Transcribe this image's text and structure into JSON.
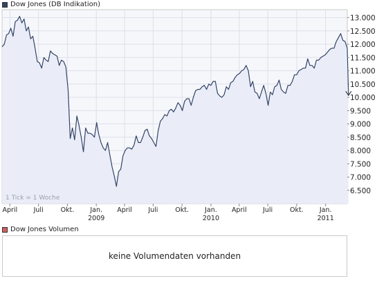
{
  "legend": {
    "title": "Dow Jones (DB Indikation)",
    "swatch_color": "#334466"
  },
  "volume": {
    "title": "Dow Jones Volumen",
    "swatch_color": "#d06060",
    "message": "keine Volumendaten vorhanden"
  },
  "annotation": "1 Tick = 1 Woche",
  "colors": {
    "line": "#334466",
    "fill": "#eaedf8",
    "grid": "#dde0ea",
    "last_marker": "#222222"
  },
  "chart_data": {
    "type": "area",
    "title": "Dow Jones (DB Indikation)",
    "xlabel": "",
    "ylabel": "",
    "x_range": [
      "2008-03-07",
      "2011-03-11"
    ],
    "ylim": [
      6000,
      13300
    ],
    "grid": true,
    "y_ticks": [
      {
        "value": 6500,
        "label": "6.500"
      },
      {
        "value": 7000,
        "label": "7.000"
      },
      {
        "value": 7500,
        "label": "7.500"
      },
      {
        "value": 8000,
        "label": "8.000"
      },
      {
        "value": 8500,
        "label": "8.500"
      },
      {
        "value": 9000,
        "label": "9.000"
      },
      {
        "value": 9500,
        "label": "9.500"
      },
      {
        "value": 10000,
        "label": "10.000"
      },
      {
        "value": 10500,
        "label": "10.500"
      },
      {
        "value": 11000,
        "label": "11.000"
      },
      {
        "value": 11500,
        "label": "11.500"
      },
      {
        "value": 12000,
        "label": "12.000"
      },
      {
        "value": 12500,
        "label": "12.500"
      },
      {
        "value": 13000,
        "label": "13.000"
      }
    ],
    "x_ticks": [
      {
        "date": "2008-04-01",
        "label": "April"
      },
      {
        "date": "2008-07-01",
        "label": "Juli"
      },
      {
        "date": "2008-10-01",
        "label": "Okt."
      },
      {
        "date": "2009-01-01",
        "label": "Jan.",
        "year": "2009"
      },
      {
        "date": "2009-04-01",
        "label": "April"
      },
      {
        "date": "2009-07-01",
        "label": "Juli"
      },
      {
        "date": "2009-10-01",
        "label": "Okt."
      },
      {
        "date": "2010-01-01",
        "label": "Jan.",
        "year": "2010"
      },
      {
        "date": "2010-04-01",
        "label": "April"
      },
      {
        "date": "2010-07-01",
        "label": "Juli"
      },
      {
        "date": "2010-10-01",
        "label": "Okt."
      },
      {
        "date": "2011-01-01",
        "label": "Jan.",
        "year": "2011"
      }
    ],
    "series": [
      {
        "points": [
          [
            "2008-03-07",
            11900
          ],
          [
            "2008-03-14",
            12000
          ],
          [
            "2008-03-21",
            12350
          ],
          [
            "2008-03-28",
            12400
          ],
          [
            "2008-04-04",
            12600
          ],
          [
            "2008-04-11",
            12300
          ],
          [
            "2008-04-18",
            12850
          ],
          [
            "2008-04-25",
            12900
          ],
          [
            "2008-05-02",
            13050
          ],
          [
            "2008-05-09",
            12800
          ],
          [
            "2008-05-16",
            12950
          ],
          [
            "2008-05-23",
            12500
          ],
          [
            "2008-05-30",
            12650
          ],
          [
            "2008-06-06",
            12200
          ],
          [
            "2008-06-13",
            12300
          ],
          [
            "2008-06-20",
            11850
          ],
          [
            "2008-06-27",
            11350
          ],
          [
            "2008-07-04",
            11300
          ],
          [
            "2008-07-11",
            11100
          ],
          [
            "2008-07-18",
            11500
          ],
          [
            "2008-07-25",
            11400
          ],
          [
            "2008-08-01",
            11350
          ],
          [
            "2008-08-08",
            11750
          ],
          [
            "2008-08-15",
            11650
          ],
          [
            "2008-08-22",
            11600
          ],
          [
            "2008-08-29",
            11550
          ],
          [
            "2008-09-05",
            11200
          ],
          [
            "2008-09-12",
            11400
          ],
          [
            "2008-09-19",
            11350
          ],
          [
            "2008-09-26",
            11150
          ],
          [
            "2008-10-03",
            10300
          ],
          [
            "2008-10-10",
            8450
          ],
          [
            "2008-10-17",
            8850
          ],
          [
            "2008-10-24",
            8400
          ],
          [
            "2008-10-31",
            9300
          ],
          [
            "2008-11-07",
            8950
          ],
          [
            "2008-11-14",
            8500
          ],
          [
            "2008-11-21",
            7950
          ],
          [
            "2008-11-28",
            8850
          ],
          [
            "2008-12-05",
            8650
          ],
          [
            "2008-12-12",
            8650
          ],
          [
            "2008-12-19",
            8600
          ],
          [
            "2008-12-26",
            8500
          ],
          [
            "2009-01-02",
            9050
          ],
          [
            "2009-01-09",
            8600
          ],
          [
            "2009-01-16",
            8300
          ],
          [
            "2009-01-23",
            8100
          ],
          [
            "2009-01-30",
            8000
          ],
          [
            "2009-02-06",
            8300
          ],
          [
            "2009-02-13",
            7850
          ],
          [
            "2009-02-20",
            7400
          ],
          [
            "2009-02-27",
            7050
          ],
          [
            "2009-03-06",
            6650
          ],
          [
            "2009-03-13",
            7200
          ],
          [
            "2009-03-20",
            7300
          ],
          [
            "2009-03-27",
            7800
          ],
          [
            "2009-04-03",
            8000
          ],
          [
            "2009-04-10",
            8100
          ],
          [
            "2009-04-17",
            8100
          ],
          [
            "2009-04-24",
            8050
          ],
          [
            "2009-05-01",
            8200
          ],
          [
            "2009-05-08",
            8550
          ],
          [
            "2009-05-15",
            8300
          ],
          [
            "2009-05-22",
            8300
          ],
          [
            "2009-05-29",
            8500
          ],
          [
            "2009-06-05",
            8750
          ],
          [
            "2009-06-12",
            8800
          ],
          [
            "2009-06-19",
            8550
          ],
          [
            "2009-06-26",
            8450
          ],
          [
            "2009-07-03",
            8300
          ],
          [
            "2009-07-10",
            8150
          ],
          [
            "2009-07-17",
            8750
          ],
          [
            "2009-07-24",
            9100
          ],
          [
            "2009-07-31",
            9200
          ],
          [
            "2009-08-07",
            9350
          ],
          [
            "2009-08-14",
            9300
          ],
          [
            "2009-08-21",
            9500
          ],
          [
            "2009-08-28",
            9550
          ],
          [
            "2009-09-04",
            9450
          ],
          [
            "2009-09-11",
            9600
          ],
          [
            "2009-09-18",
            9800
          ],
          [
            "2009-09-25",
            9700
          ],
          [
            "2009-10-02",
            9500
          ],
          [
            "2009-10-09",
            9850
          ],
          [
            "2009-10-16",
            9950
          ],
          [
            "2009-10-23",
            9950
          ],
          [
            "2009-10-30",
            9700
          ],
          [
            "2009-11-06",
            10000
          ],
          [
            "2009-11-13",
            10250
          ],
          [
            "2009-11-20",
            10300
          ],
          [
            "2009-11-27",
            10300
          ],
          [
            "2009-12-04",
            10400
          ],
          [
            "2009-12-11",
            10450
          ],
          [
            "2009-12-18",
            10300
          ],
          [
            "2009-12-25",
            10500
          ],
          [
            "2010-01-01",
            10450
          ],
          [
            "2010-01-08",
            10600
          ],
          [
            "2010-01-15",
            10600
          ],
          [
            "2010-01-22",
            10150
          ],
          [
            "2010-01-29",
            10050
          ],
          [
            "2010-02-05",
            10000
          ],
          [
            "2010-02-12",
            10100
          ],
          [
            "2010-02-19",
            10400
          ],
          [
            "2010-02-26",
            10300
          ],
          [
            "2010-03-05",
            10550
          ],
          [
            "2010-03-12",
            10600
          ],
          [
            "2010-03-19",
            10750
          ],
          [
            "2010-03-26",
            10850
          ],
          [
            "2010-04-02",
            10900
          ],
          [
            "2010-04-09",
            11000
          ],
          [
            "2010-04-16",
            11050
          ],
          [
            "2010-04-23",
            11200
          ],
          [
            "2010-04-30",
            11000
          ],
          [
            "2010-05-07",
            10400
          ],
          [
            "2010-05-14",
            10600
          ],
          [
            "2010-05-21",
            10200
          ],
          [
            "2010-05-28",
            10150
          ],
          [
            "2010-06-04",
            9950
          ],
          [
            "2010-06-11",
            10200
          ],
          [
            "2010-06-18",
            10450
          ],
          [
            "2010-06-25",
            10150
          ],
          [
            "2010-07-02",
            9700
          ],
          [
            "2010-07-09",
            10200
          ],
          [
            "2010-07-16",
            10100
          ],
          [
            "2010-07-23",
            10400
          ],
          [
            "2010-07-30",
            10450
          ],
          [
            "2010-08-06",
            10650
          ],
          [
            "2010-08-13",
            10300
          ],
          [
            "2010-08-20",
            10200
          ],
          [
            "2010-08-27",
            10150
          ],
          [
            "2010-09-03",
            10450
          ],
          [
            "2010-09-10",
            10450
          ],
          [
            "2010-09-17",
            10600
          ],
          [
            "2010-09-24",
            10850
          ],
          [
            "2010-10-01",
            10850
          ],
          [
            "2010-10-08",
            11000
          ],
          [
            "2010-10-15",
            11050
          ],
          [
            "2010-10-22",
            11100
          ],
          [
            "2010-10-29",
            11100
          ],
          [
            "2010-11-05",
            11450
          ],
          [
            "2010-11-12",
            11200
          ],
          [
            "2010-11-19",
            11200
          ],
          [
            "2010-11-26",
            11100
          ],
          [
            "2010-12-03",
            11400
          ],
          [
            "2010-12-10",
            11400
          ],
          [
            "2010-12-17",
            11500
          ],
          [
            "2010-12-24",
            11550
          ],
          [
            "2010-12-31",
            11600
          ],
          [
            "2011-01-07",
            11700
          ],
          [
            "2011-01-14",
            11800
          ],
          [
            "2011-01-21",
            11850
          ],
          [
            "2011-01-28",
            11850
          ],
          [
            "2011-02-04",
            12100
          ],
          [
            "2011-02-11",
            12250
          ],
          [
            "2011-02-18",
            12400
          ],
          [
            "2011-02-25",
            12150
          ],
          [
            "2011-03-04",
            12100
          ],
          [
            "2011-03-11",
            11850
          ],
          [
            "2011-03-15",
            10100
          ]
        ]
      }
    ]
  }
}
